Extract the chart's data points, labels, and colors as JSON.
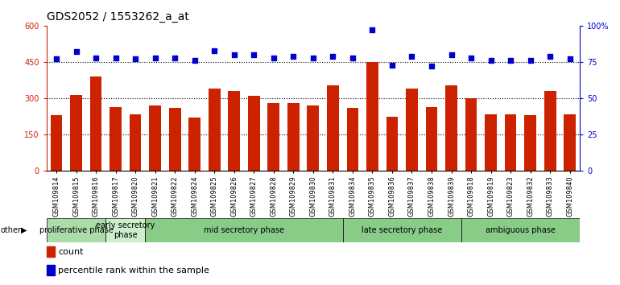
{
  "title": "GDS2052 / 1553262_a_at",
  "samples": [
    "GSM109814",
    "GSM109815",
    "GSM109816",
    "GSM109817",
    "GSM109820",
    "GSM109821",
    "GSM109822",
    "GSM109824",
    "GSM109825",
    "GSM109826",
    "GSM109827",
    "GSM109828",
    "GSM109829",
    "GSM109830",
    "GSM109831",
    "GSM109834",
    "GSM109835",
    "GSM109836",
    "GSM109837",
    "GSM109838",
    "GSM109839",
    "GSM109818",
    "GSM109819",
    "GSM109823",
    "GSM109832",
    "GSM109833",
    "GSM109840"
  ],
  "counts": [
    230,
    315,
    390,
    265,
    235,
    270,
    260,
    220,
    340,
    330,
    310,
    280,
    280,
    270,
    355,
    260,
    450,
    225,
    340,
    265,
    355,
    300,
    235,
    235,
    230,
    330,
    235
  ],
  "percentiles": [
    77,
    82,
    78,
    78,
    77,
    78,
    78,
    76,
    83,
    80,
    80,
    78,
    79,
    78,
    79,
    78,
    97,
    73,
    79,
    72,
    80,
    78,
    76,
    76,
    76,
    79,
    77
  ],
  "bar_color": "#cc2200",
  "dot_color": "#0000cc",
  "phases": [
    {
      "label": "proliferative phase",
      "start": 0,
      "end": 3,
      "color": "#aaddaa"
    },
    {
      "label": "early secretory\nphase",
      "start": 3,
      "end": 5,
      "color": "#cceecc"
    },
    {
      "label": "mid secretory phase",
      "start": 5,
      "end": 15,
      "color": "#88cc88"
    },
    {
      "label": "late secretory phase",
      "start": 15,
      "end": 21,
      "color": "#88cc88"
    },
    {
      "label": "ambiguous phase",
      "start": 21,
      "end": 27,
      "color": "#88cc88"
    }
  ],
  "ylim_left": [
    0,
    600
  ],
  "ylim_right": [
    0,
    100
  ],
  "yticks_left": [
    0,
    150,
    300,
    450,
    600
  ],
  "yticks_right": [
    0,
    25,
    50,
    75,
    100
  ],
  "ytick_labels_left": [
    "0",
    "150",
    "300",
    "450",
    "600"
  ],
  "ytick_labels_right": [
    "0",
    "25",
    "50",
    "75",
    "100%"
  ],
  "grid_values": [
    150,
    300,
    450
  ],
  "plot_bg_color": "#ffffff",
  "title_fontsize": 10,
  "tick_fontsize": 7,
  "phase_fontsize": 7,
  "legend_fontsize": 8
}
